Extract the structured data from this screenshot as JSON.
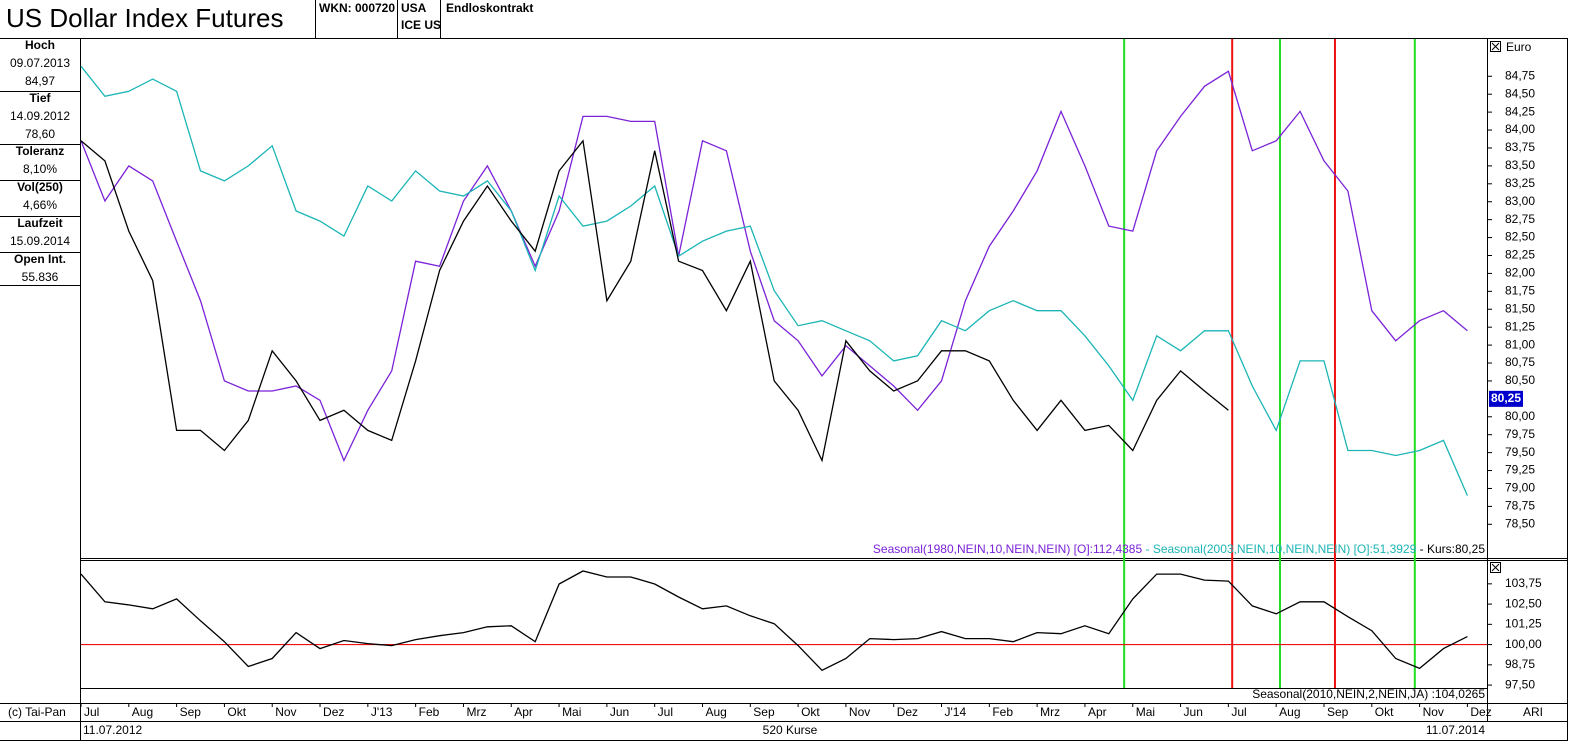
{
  "header": {
    "title": "US Dollar Index Futures",
    "wkn": "WKN: 000720",
    "country": "USA",
    "exchange": "ICE US",
    "contract": "Endloskontrakt"
  },
  "sidebar": [
    {
      "label": "Hoch",
      "lines": [
        "09.07.2013",
        "84,97"
      ]
    },
    {
      "label": "Tief",
      "lines": [
        "14.09.2012",
        "78,60"
      ]
    },
    {
      "label": "Toleranz",
      "lines": [
        "8,10%"
      ]
    },
    {
      "label": "Vol(250)",
      "lines": [
        "4,66%"
      ]
    },
    {
      "label": "Laufzeit",
      "lines": [
        "15.09.2014"
      ]
    },
    {
      "label": "Open Int.",
      "lines": [
        "55.836"
      ]
    }
  ],
  "footer": {
    "copyright": "(c) Tai-Pan",
    "corner": "ARI",
    "left": "11.07.2012",
    "center": "520 Kurse",
    "right": "11.07.2014"
  },
  "chart_data": [
    {
      "type": "line",
      "y_unit": "Euro",
      "legend_separator": " - ",
      "x": [
        0,
        0.5,
        1,
        1.5,
        2,
        2.5,
        3,
        3.5,
        4,
        4.5,
        5,
        5.5,
        6,
        6.5,
        7,
        7.5,
        8,
        8.5,
        9,
        9.5,
        10,
        10.5,
        11,
        11.5,
        12,
        12.5,
        13,
        13.5,
        14,
        14.5,
        15,
        15.5,
        16,
        16.5,
        17,
        17.5,
        18,
        18.5,
        19,
        19.5,
        20,
        20.5,
        21,
        21.5,
        22,
        22.5,
        23,
        23.5,
        24,
        24.5,
        25,
        25.5,
        26,
        26.5,
        27,
        27.5,
        28,
        28.5,
        29
      ],
      "xlim": [
        0,
        29.41
      ],
      "ylim": [
        78.03,
        85.27
      ],
      "yticks": [
        {
          "value": 78.5,
          "label": "78,50"
        },
        {
          "value": 78.75,
          "label": "78,75"
        },
        {
          "value": 79,
          "label": "79,00"
        },
        {
          "value": 79.25,
          "label": "79,25"
        },
        {
          "value": 79.5,
          "label": "79,50"
        },
        {
          "value": 79.75,
          "label": "79,75"
        },
        {
          "value": 80,
          "label": "80,00"
        },
        {
          "value": 80.5,
          "label": "80,50"
        },
        {
          "value": 80.75,
          "label": "80,75"
        },
        {
          "value": 81,
          "label": "81,00"
        },
        {
          "value": 81.25,
          "label": "81,25"
        },
        {
          "value": 81.5,
          "label": "81,50"
        },
        {
          "value": 81.75,
          "label": "81,75"
        },
        {
          "value": 82,
          "label": "82,00"
        },
        {
          "value": 82.25,
          "label": "82,25"
        },
        {
          "value": 82.5,
          "label": "82,50"
        },
        {
          "value": 82.75,
          "label": "82,75"
        },
        {
          "value": 83,
          "label": "83,00"
        },
        {
          "value": 83.25,
          "label": "83,25"
        },
        {
          "value": 83.5,
          "label": "83,50"
        },
        {
          "value": 83.75,
          "label": "83,75"
        },
        {
          "value": 84,
          "label": "84,00"
        },
        {
          "value": 84.25,
          "label": "84,25"
        },
        {
          "value": 84.5,
          "label": "84,50"
        },
        {
          "value": 84.75,
          "label": "84,75"
        }
      ],
      "current": {
        "value": 80.25,
        "label": "80,25"
      },
      "markers": [
        {
          "x": 21.82,
          "color": "#22dd22"
        },
        {
          "x": 24.08,
          "color": "#ee1111"
        },
        {
          "x": 25.08,
          "color": "#22dd22"
        },
        {
          "x": 26.23,
          "color": "#ee1111"
        },
        {
          "x": 27.9,
          "color": "#22dd22"
        }
      ],
      "series": [
        {
          "name": "Seasonal(1980,NEIN,10,NEIN,NEIN) [O]:112,4385",
          "color": "#7b22d8",
          "values": [
            83.85,
            83.01,
            83.5,
            83.29,
            82.45,
            81.62,
            80.5,
            80.36,
            80.36,
            80.43,
            80.23,
            79.39,
            80.09,
            80.64,
            82.17,
            82.1,
            83.01,
            83.5,
            82.87,
            82.1,
            82.87,
            84.19,
            84.19,
            84.12,
            84.12,
            82.24,
            83.85,
            83.71,
            82.31,
            81.34,
            81.06,
            80.57,
            80.99,
            80.71,
            80.43,
            80.09,
            80.5,
            81.62,
            82.38,
            82.87,
            83.43,
            84.26,
            83.5,
            82.66,
            82.59,
            83.71,
            84.19,
            84.61,
            84.82,
            83.71,
            83.85,
            84.26,
            83.57,
            83.15,
            81.48,
            81.06,
            81.34,
            81.48,
            81.2
          ]
        },
        {
          "name": "Seasonal(2003,NEIN,10,NEIN,NEIN) [O]:51,3929",
          "color": "#1bb5b5",
          "values": [
            84.89,
            84.47,
            84.54,
            84.71,
            84.54,
            83.43,
            83.29,
            83.5,
            83.78,
            82.87,
            82.73,
            82.52,
            83.22,
            83.01,
            83.43,
            83.15,
            83.08,
            83.29,
            82.87,
            82.04,
            83.08,
            82.66,
            82.73,
            82.94,
            83.22,
            82.24,
            82.45,
            82.59,
            82.66,
            81.76,
            81.27,
            81.34,
            81.2,
            81.06,
            80.78,
            80.85,
            81.34,
            81.2,
            81.48,
            81.62,
            81.48,
            81.48,
            81.13,
            80.71,
            80.23,
            81.13,
            80.92,
            81.2,
            81.2,
            80.43,
            79.81,
            80.78,
            80.78,
            79.53,
            79.53,
            79.46,
            79.53,
            79.67,
            78.9
          ]
        },
        {
          "name": "Kurs:80,25",
          "color": "#000000",
          "values": [
            83.85,
            83.57,
            82.59,
            81.9,
            79.81,
            79.81,
            79.53,
            79.95,
            80.92,
            80.5,
            79.95,
            80.09,
            79.81,
            79.67,
            80.78,
            82.04,
            82.73,
            83.22,
            82.73,
            82.31,
            83.43,
            83.85,
            81.62,
            82.17,
            83.71,
            82.17,
            82.04,
            81.48,
            82.17,
            80.5,
            80.09,
            79.39,
            81.06,
            80.64,
            80.36,
            80.5,
            80.92,
            80.92,
            80.78,
            80.23,
            79.81,
            80.23,
            79.81,
            79.88,
            79.53,
            80.23,
            80.64,
            80.36,
            80.09,
            null,
            null,
            null,
            null,
            null,
            null,
            null,
            null,
            null,
            null
          ]
        }
      ]
    },
    {
      "type": "line",
      "x": [
        0,
        0.5,
        1,
        1.5,
        2,
        2.5,
        3,
        3.5,
        4,
        4.5,
        5,
        5.5,
        6,
        6.5,
        7,
        7.5,
        8,
        8.5,
        9,
        9.5,
        10,
        10.5,
        11,
        11.5,
        12,
        12.5,
        13,
        13.5,
        14,
        14.5,
        15,
        15.5,
        16,
        16.5,
        17,
        17.5,
        18,
        18.5,
        19,
        19.5,
        20,
        20.5,
        21,
        21.5,
        22,
        22.5,
        23,
        23.5,
        24,
        24.5,
        25,
        25.5,
        26,
        26.5,
        27,
        27.5,
        28,
        28.5,
        29
      ],
      "xlim": [
        0,
        29.41
      ],
      "ylim": [
        97.32,
        105.16
      ],
      "yticks": [
        {
          "value": 97.5,
          "label": "97,50"
        },
        {
          "value": 98.75,
          "label": "98,75"
        },
        {
          "value": 100,
          "label": "100,00"
        },
        {
          "value": 101.25,
          "label": "101,25"
        },
        {
          "value": 102.5,
          "label": "102,50"
        },
        {
          "value": 103.75,
          "label": "103,75"
        }
      ],
      "xticks": [
        {
          "value": 0,
          "label": "Jul"
        },
        {
          "value": 1,
          "label": "Aug"
        },
        {
          "value": 2,
          "label": "Sep"
        },
        {
          "value": 3,
          "label": "Okt"
        },
        {
          "value": 4,
          "label": "Nov"
        },
        {
          "value": 5,
          "label": "Dez"
        },
        {
          "value": 6,
          "label": "J'13"
        },
        {
          "value": 7,
          "label": "Feb"
        },
        {
          "value": 8,
          "label": "Mrz"
        },
        {
          "value": 9,
          "label": "Apr"
        },
        {
          "value": 10,
          "label": "Mai"
        },
        {
          "value": 11,
          "label": "Jun"
        },
        {
          "value": 12,
          "label": "Jul"
        },
        {
          "value": 13,
          "label": "Aug"
        },
        {
          "value": 14,
          "label": "Sep"
        },
        {
          "value": 15,
          "label": "Okt"
        },
        {
          "value": 16,
          "label": "Nov"
        },
        {
          "value": 17,
          "label": "Dez"
        },
        {
          "value": 18,
          "label": "J'14"
        },
        {
          "value": 19,
          "label": "Feb"
        },
        {
          "value": 20,
          "label": "Mrz"
        },
        {
          "value": 21,
          "label": "Apr"
        },
        {
          "value": 22,
          "label": "Mai"
        },
        {
          "value": 23,
          "label": "Jun"
        },
        {
          "value": 24,
          "label": "Jul"
        },
        {
          "value": 25,
          "label": "Aug"
        },
        {
          "value": 26,
          "label": "Sep"
        },
        {
          "value": 27,
          "label": "Okt"
        },
        {
          "value": 28,
          "label": "Nov"
        },
        {
          "value": 29,
          "label": "Dez"
        }
      ],
      "hlines": [
        {
          "y": 100,
          "color": "#ee1111"
        }
      ],
      "series": [
        {
          "name": "Seasonal(2010,NEIN,2,NEIN,JA) :104,0265",
          "color": "#000000",
          "values": [
            104.35,
            102.64,
            102.45,
            102.21,
            102.82,
            101.47,
            100.18,
            98.65,
            99.14,
            100.74,
            99.75,
            100.25,
            100.06,
            99.94,
            100.31,
            100.55,
            100.74,
            101.1,
            101.16,
            100.18,
            103.74,
            104.54,
            104.17,
            104.17,
            103.74,
            102.94,
            102.21,
            102.39,
            101.78,
            101.29,
            99.94,
            98.41,
            99.14,
            100.37,
            100.31,
            100.37,
            100.8,
            100.37,
            100.37,
            100.18,
            100.74,
            100.67,
            101.16,
            100.67,
            102.82,
            104.35,
            104.35,
            103.98,
            103.92,
            102.39,
            101.9,
            102.64,
            102.64,
            101.72,
            100.86,
            99.14,
            98.53,
            99.75,
            100.49
          ]
        }
      ]
    }
  ]
}
